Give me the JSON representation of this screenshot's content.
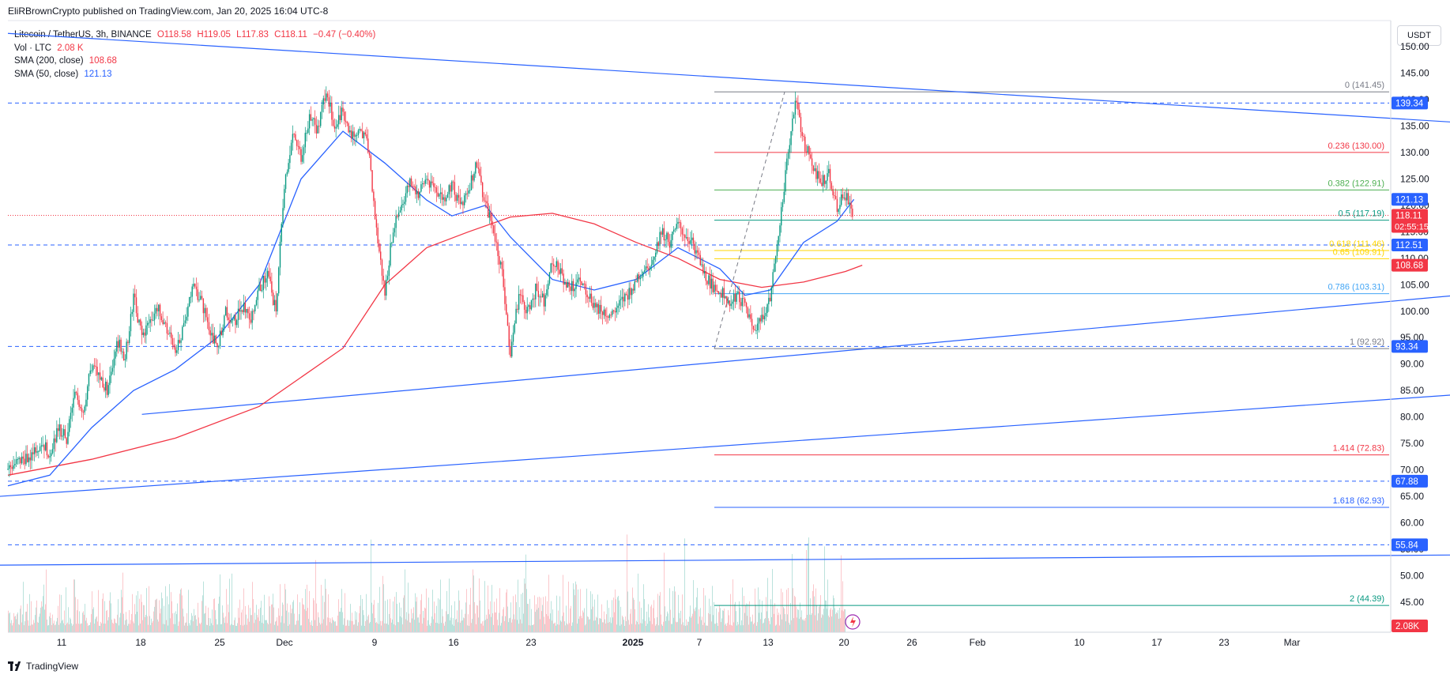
{
  "header": {
    "publisher": "EliRBrownCrypto published on TradingView.com, Jan 20, 2025 16:04 UTC-8"
  },
  "legend": {
    "symbol": "Litecoin / TetherUS, 3h, BINANCE",
    "open": "O118.58",
    "high": "H119.05",
    "low": "L117.83",
    "close": "C118.11",
    "change": "−0.47 (−0.40%)",
    "vol_label": "Vol · LTC",
    "vol_value": "2.08 K",
    "sma200_label": "SMA (200, close)",
    "sma200_value": "108.68",
    "sma50_label": "SMA (50, close)",
    "sma50_value": "121.13"
  },
  "currency": "USDT",
  "brand": "TradingView",
  "colors": {
    "up": "#089981",
    "down": "#F23645",
    "sma50": "#2962FF",
    "sma200": "#F23645",
    "trend": "#2962FF"
  },
  "chart_data": {
    "type": "candlestick",
    "title": "Litecoin / TetherUS, 3h, BINANCE",
    "ylim": [
      40,
      155
    ],
    "y_ticks": [
      "150.00",
      "145.00",
      "140.00",
      "135.00",
      "130.00",
      "125.00",
      "120.00",
      "115.00",
      "110.00",
      "105.00",
      "100.00",
      "95.00",
      "90.00",
      "85.00",
      "80.00",
      "75.00",
      "70.00",
      "65.00",
      "60.00",
      "55.00",
      "50.00",
      "45.00"
    ],
    "x_ticks": [
      "11",
      "18",
      "25",
      "Dec",
      "9",
      "16",
      "23",
      "2025",
      "7",
      "13",
      "20",
      "26",
      "Feb",
      "10",
      "17",
      "23",
      "Mar"
    ],
    "price_path": [
      [
        0,
        70
      ],
      [
        2,
        72
      ],
      [
        4,
        75
      ],
      [
        5,
        73
      ],
      [
        6,
        78
      ],
      [
        7,
        76
      ],
      [
        8,
        84
      ],
      [
        9,
        81
      ],
      [
        10,
        90
      ],
      [
        11,
        87
      ],
      [
        12,
        85
      ],
      [
        13,
        95
      ],
      [
        14,
        91
      ],
      [
        15,
        103
      ],
      [
        16,
        95
      ],
      [
        17,
        98
      ],
      [
        18,
        101
      ],
      [
        19,
        96
      ],
      [
        20,
        93
      ],
      [
        21,
        97
      ],
      [
        22,
        105
      ],
      [
        23,
        102
      ],
      [
        24,
        97
      ],
      [
        25,
        93
      ],
      [
        26,
        100
      ],
      [
        27,
        98
      ],
      [
        28,
        101
      ],
      [
        29,
        99
      ],
      [
        30,
        104
      ],
      [
        31,
        107
      ],
      [
        32,
        100
      ],
      [
        33,
        124
      ],
      [
        34,
        133
      ],
      [
        35,
        129
      ],
      [
        36,
        137
      ],
      [
        37,
        134
      ],
      [
        38,
        142
      ],
      [
        39,
        135
      ],
      [
        40,
        138
      ],
      [
        41,
        133
      ],
      [
        42,
        135
      ],
      [
        43,
        131
      ],
      [
        44,
        115
      ],
      [
        45,
        103
      ],
      [
        46,
        116
      ],
      [
        47,
        120
      ],
      [
        48,
        124
      ],
      [
        49,
        122
      ],
      [
        50,
        125
      ],
      [
        51,
        123
      ],
      [
        52,
        121
      ],
      [
        53,
        124
      ],
      [
        54,
        120
      ],
      [
        55,
        123
      ],
      [
        56,
        128
      ],
      [
        57,
        120
      ],
      [
        58,
        115
      ],
      [
        59,
        107
      ],
      [
        60,
        92
      ],
      [
        61,
        103
      ],
      [
        62,
        100
      ],
      [
        63,
        104
      ],
      [
        64,
        102
      ],
      [
        65,
        110
      ],
      [
        66,
        107
      ],
      [
        67,
        104
      ],
      [
        68,
        106
      ],
      [
        69,
        104
      ],
      [
        70,
        101
      ],
      [
        71,
        100
      ],
      [
        72,
        99
      ],
      [
        73,
        101
      ],
      [
        74,
        103
      ],
      [
        75,
        106
      ],
      [
        76,
        108
      ],
      [
        77,
        110
      ],
      [
        78,
        115
      ],
      [
        79,
        113
      ],
      [
        80,
        116
      ],
      [
        81,
        114
      ],
      [
        82,
        112
      ],
      [
        83,
        107
      ],
      [
        84,
        105
      ],
      [
        85,
        104
      ],
      [
        86,
        102
      ],
      [
        87,
        103
      ],
      [
        88,
        101
      ],
      [
        89,
        96
      ],
      [
        90,
        99
      ],
      [
        91,
        102
      ],
      [
        92,
        115
      ],
      [
        93,
        128
      ],
      [
        94,
        140
      ],
      [
        95,
        132
      ],
      [
        96,
        128
      ],
      [
        97,
        124
      ],
      [
        98,
        126
      ],
      [
        99,
        120
      ],
      [
        100,
        122
      ],
      [
        101,
        118
      ]
    ],
    "series": [
      {
        "name": "SMA (200, close)",
        "last": 108.68,
        "path": [
          [
            0,
            69
          ],
          [
            10,
            72
          ],
          [
            20,
            76
          ],
          [
            30,
            82
          ],
          [
            40,
            93
          ],
          [
            45,
            105
          ],
          [
            50,
            112
          ],
          [
            55,
            115
          ],
          [
            60,
            117.8
          ],
          [
            65,
            118.5
          ],
          [
            70,
            116.5
          ],
          [
            75,
            113
          ],
          [
            80,
            110
          ],
          [
            85,
            106
          ],
          [
            90,
            104.5
          ],
          [
            95,
            105.5
          ],
          [
            100,
            107.5
          ],
          [
            102,
            108.68
          ]
        ]
      },
      {
        "name": "SMA (50, close)",
        "last": 121.13,
        "path": [
          [
            0,
            67
          ],
          [
            5,
            69
          ],
          [
            10,
            78
          ],
          [
            15,
            85
          ],
          [
            20,
            89
          ],
          [
            25,
            95
          ],
          [
            30,
            105
          ],
          [
            35,
            125
          ],
          [
            40,
            134
          ],
          [
            45,
            128
          ],
          [
            50,
            121
          ],
          [
            53,
            118
          ],
          [
            57,
            120
          ],
          [
            60,
            114
          ],
          [
            65,
            106
          ],
          [
            70,
            104
          ],
          [
            75,
            106
          ],
          [
            80,
            112
          ],
          [
            85,
            108
          ],
          [
            88,
            103
          ],
          [
            91,
            104
          ],
          [
            95,
            113
          ],
          [
            99,
            117
          ],
          [
            101,
            121.13
          ]
        ]
      }
    ],
    "fibonacci": [
      {
        "level": "0",
        "label": "0 (141.45)",
        "price": 141.45,
        "color": "#787B86"
      },
      {
        "level": "0.236",
        "label": "0.236 (130.00)",
        "price": 130.0,
        "color": "#F23645"
      },
      {
        "level": "0.382",
        "label": "0.382 (122.91)",
        "price": 122.91,
        "color": "#4CAF50"
      },
      {
        "level": "0.5",
        "label": "0.5 (117.19)",
        "price": 117.19,
        "color": "#089981"
      },
      {
        "level": "0.618",
        "label": "0.618 (111.46)",
        "price": 111.46,
        "color": "#FFD600"
      },
      {
        "level": "0.65",
        "label": "0.65 (109.91)",
        "price": 109.91,
        "color": "#FFD600"
      },
      {
        "level": "0.786",
        "label": "0.786 (103.31)",
        "price": 103.31,
        "color": "#42A5F5"
      },
      {
        "level": "1",
        "label": "1 (92.92)",
        "price": 92.92,
        "color": "#787B86"
      },
      {
        "level": "1.414",
        "label": "1.414 (72.83)",
        "price": 72.83,
        "color": "#F23645"
      },
      {
        "level": "1.618",
        "label": "1.618 (62.93)",
        "price": 62.93,
        "color": "#2962FF"
      },
      {
        "level": "2",
        "label": "2 (44.39)",
        "price": 44.39,
        "color": "#089981"
      }
    ],
    "horizontal_levels": [
      139.34,
      112.51,
      93.34,
      67.88,
      55.84
    ],
    "trend_lines": [
      {
        "from": [
          0,
          152.5
        ],
        "to": [
          180,
          135
        ]
      },
      {
        "from": [
          16,
          80.5
        ],
        "to": [
          180,
          104
        ]
      },
      {
        "from": [
          -1,
          65
        ],
        "to": [
          180,
          85
        ]
      },
      {
        "from": [
          -1,
          52
        ],
        "to": [
          180,
          54
        ]
      }
    ],
    "price_labels": [
      {
        "value": "139.34",
        "color": "#2962FF"
      },
      {
        "value": "121.13",
        "color": "#2962FF"
      },
      {
        "value": "118.11",
        "sub": "02:55:15",
        "color": "#F23645"
      },
      {
        "value": "112.51",
        "color": "#2962FF"
      },
      {
        "value": "108.68",
        "color": "#F23645"
      },
      {
        "value": "93.34",
        "color": "#2962FF"
      },
      {
        "value": "67.88",
        "color": "#2962FF"
      },
      {
        "value": "55.84",
        "color": "#2962FF"
      },
      {
        "value": "2.08K",
        "color": "#F23645"
      }
    ],
    "last_price": 118.11
  }
}
